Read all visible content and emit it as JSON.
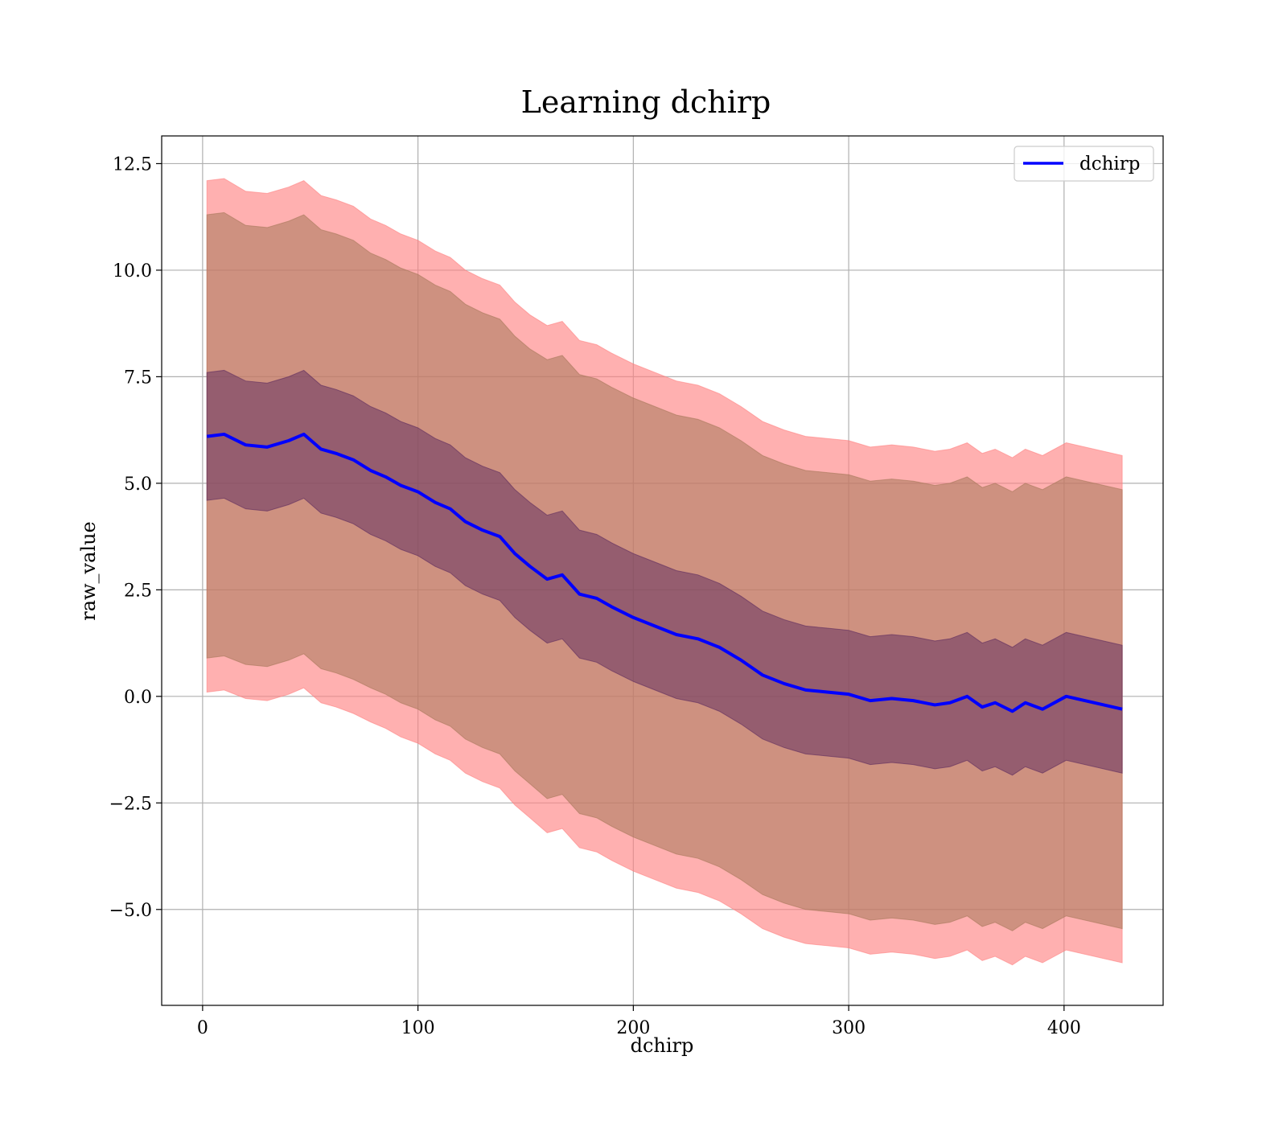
{
  "chart_data": {
    "type": "line",
    "title": "Learning dchirp",
    "xlabel": "dchirp",
    "ylabel": "raw_value",
    "xlim": [
      -19,
      446
    ],
    "ylim": [
      -7.25,
      13.15
    ],
    "xticks": [
      0,
      100,
      200,
      300,
      400
    ],
    "xtick_labels": [
      "0",
      "100",
      "200",
      "300",
      "400"
    ],
    "yticks": [
      -5.0,
      -2.5,
      0.0,
      2.5,
      5.0,
      7.5,
      10.0,
      12.5
    ],
    "ytick_labels": [
      "−5.0",
      "−2.5",
      "0.0",
      "2.5",
      "5.0",
      "7.5",
      "10.0",
      "12.5"
    ],
    "grid": true,
    "legend": {
      "position": "top-right"
    },
    "series": [
      {
        "name": "dchirp",
        "color": "#0000ff",
        "x": [
          2,
          10,
          20,
          30,
          40,
          47,
          55,
          62,
          70,
          78,
          85,
          92,
          100,
          108,
          115,
          122,
          130,
          138,
          145,
          152,
          160,
          167,
          175,
          183,
          190,
          200,
          210,
          220,
          230,
          240,
          250,
          260,
          270,
          280,
          290,
          300,
          310,
          320,
          330,
          340,
          347,
          355,
          362,
          368,
          376,
          382,
          390,
          401,
          427
        ],
        "y": [
          6.1,
          6.15,
          5.9,
          5.85,
          6.0,
          6.15,
          5.8,
          5.7,
          5.55,
          5.3,
          5.15,
          4.95,
          4.8,
          4.55,
          4.4,
          4.1,
          3.9,
          3.75,
          3.35,
          3.05,
          2.75,
          2.85,
          2.4,
          2.3,
          2.1,
          1.85,
          1.65,
          1.45,
          1.35,
          1.15,
          0.85,
          0.5,
          0.3,
          0.15,
          0.1,
          0.05,
          -0.1,
          -0.05,
          -0.1,
          -0.2,
          -0.15,
          0.0,
          -0.25,
          -0.15,
          -0.35,
          -0.15,
          -0.3,
          0.0,
          -0.3
        ]
      }
    ],
    "bands": [
      {
        "kind": "3-sigma",
        "color": "#ff8080",
        "opacity": 0.62,
        "half_width": [
          6.0,
          6.0,
          5.95,
          5.95,
          5.95,
          5.95,
          5.95,
          5.95,
          5.95,
          5.9,
          5.9,
          5.9,
          5.9,
          5.9,
          5.9,
          5.9,
          5.9,
          5.9,
          5.9,
          5.9,
          5.95,
          5.95,
          5.95,
          5.95,
          5.95,
          5.95,
          5.95,
          5.95,
          5.95,
          5.95,
          5.95,
          5.95,
          5.95,
          5.95,
          5.95,
          5.95,
          5.95,
          5.95,
          5.95,
          5.95,
          5.95,
          5.95,
          5.95,
          5.95,
          5.95,
          5.95,
          5.95,
          5.95,
          5.95
        ]
      },
      {
        "kind": "2-sigma",
        "color": "#a6785a",
        "opacity": 0.55,
        "half_width": [
          5.2,
          5.2,
          5.15,
          5.15,
          5.15,
          5.15,
          5.15,
          5.15,
          5.15,
          5.1,
          5.1,
          5.1,
          5.1,
          5.1,
          5.1,
          5.1,
          5.1,
          5.1,
          5.1,
          5.1,
          5.15,
          5.15,
          5.15,
          5.15,
          5.15,
          5.15,
          5.15,
          5.15,
          5.15,
          5.15,
          5.15,
          5.15,
          5.15,
          5.15,
          5.15,
          5.15,
          5.15,
          5.15,
          5.15,
          5.15,
          5.15,
          5.15,
          5.15,
          5.15,
          5.15,
          5.15,
          5.15,
          5.15,
          5.15
        ]
      },
      {
        "kind": "1-sigma",
        "color": "#5c2a5e",
        "opacity": 0.5,
        "half_width": [
          1.5,
          1.5,
          1.5,
          1.5,
          1.5,
          1.5,
          1.5,
          1.5,
          1.5,
          1.5,
          1.5,
          1.5,
          1.5,
          1.5,
          1.5,
          1.5,
          1.5,
          1.5,
          1.5,
          1.5,
          1.5,
          1.5,
          1.5,
          1.5,
          1.5,
          1.5,
          1.5,
          1.5,
          1.5,
          1.5,
          1.5,
          1.5,
          1.5,
          1.5,
          1.5,
          1.5,
          1.5,
          1.5,
          1.5,
          1.5,
          1.5,
          1.5,
          1.5,
          1.5,
          1.5,
          1.5,
          1.5,
          1.5,
          1.5
        ]
      }
    ]
  }
}
